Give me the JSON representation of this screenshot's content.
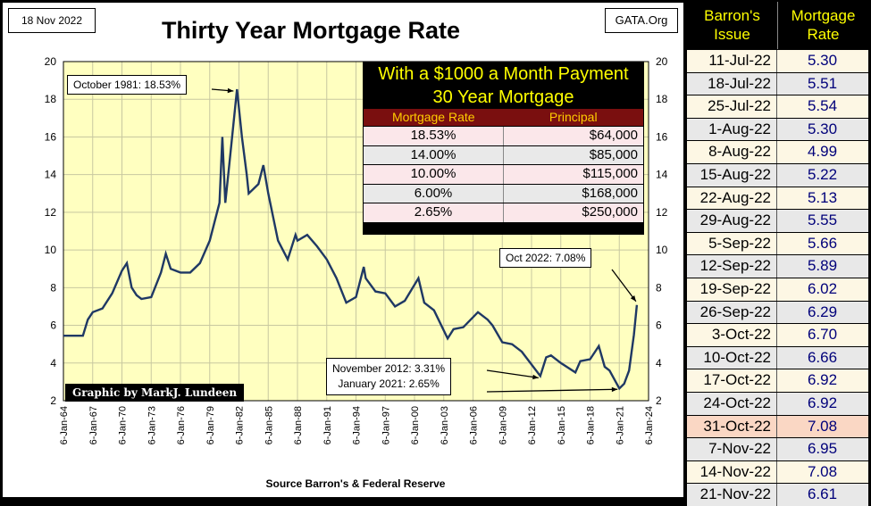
{
  "header": {
    "date": "18 Nov 2022",
    "site": "GATA.Org",
    "title": "Thirty Year Mortgage Rate"
  },
  "source": "Source Barron's & Federal Reserve",
  "credit": "Graphic by MarkJ. Lundeen",
  "callouts": {
    "peak": "October 1981:  18.53%",
    "latest": "Oct 2022:  7.08%",
    "lows_line1": "November 2012:  3.31%",
    "lows_line2": "January 2021:  2.65%"
  },
  "payment_box": {
    "title_line1": "With a $1000 a Month Payment",
    "title_line2": "30 Year Mortgage",
    "col_rate": "Mortgage Rate",
    "col_principal": "Principal",
    "rows": [
      {
        "rate": "18.53%",
        "principal": "$64,000"
      },
      {
        "rate": "14.00%",
        "principal": "$85,000"
      },
      {
        "rate": "10.00%",
        "principal": "$115,000"
      },
      {
        "rate": "6.00%",
        "principal": "$168,000"
      },
      {
        "rate": "2.65%",
        "principal": "$250,000"
      }
    ]
  },
  "issue_table": {
    "col1": [
      "Barron's",
      "Issue"
    ],
    "col2": [
      "Mortgage",
      "Rate"
    ],
    "rows": [
      {
        "issue": "11-Jul-22",
        "rate": "5.30"
      },
      {
        "issue": "18-Jul-22",
        "rate": "5.51"
      },
      {
        "issue": "25-Jul-22",
        "rate": "5.54"
      },
      {
        "issue": "1-Aug-22",
        "rate": "5.30"
      },
      {
        "issue": "8-Aug-22",
        "rate": "4.99"
      },
      {
        "issue": "15-Aug-22",
        "rate": "5.22"
      },
      {
        "issue": "22-Aug-22",
        "rate": "5.13"
      },
      {
        "issue": "29-Aug-22",
        "rate": "5.55"
      },
      {
        "issue": "5-Sep-22",
        "rate": "5.66"
      },
      {
        "issue": "12-Sep-22",
        "rate": "5.89"
      },
      {
        "issue": "19-Sep-22",
        "rate": "6.02"
      },
      {
        "issue": "26-Sep-22",
        "rate": "6.29"
      },
      {
        "issue": "3-Oct-22",
        "rate": "6.70"
      },
      {
        "issue": "10-Oct-22",
        "rate": "6.66"
      },
      {
        "issue": "17-Oct-22",
        "rate": "6.92"
      },
      {
        "issue": "24-Oct-22",
        "rate": "6.92"
      },
      {
        "issue": "31-Oct-22",
        "rate": "7.08",
        "highlight": true
      },
      {
        "issue": "7-Nov-22",
        "rate": "6.95"
      },
      {
        "issue": "14-Nov-22",
        "rate": "7.08"
      },
      {
        "issue": "21-Nov-22",
        "rate": "6.61"
      }
    ]
  },
  "colors": {
    "plot_bg": "#ffffc0",
    "line": "#1f3864",
    "grid": "#c8c8a0"
  },
  "chart_data": {
    "type": "line",
    "title": "Thirty Year Mortgage Rate",
    "xlabel": "",
    "ylabel": "",
    "ylim": [
      2,
      20
    ],
    "yticks": [
      2,
      4,
      6,
      8,
      10,
      12,
      14,
      16,
      18,
      20
    ],
    "x_tick_labels": [
      "6-Jan-64",
      "6-Jan-67",
      "6-Jan-70",
      "6-Jan-73",
      "6-Jan-76",
      "6-Jan-79",
      "6-Jan-82",
      "6-Jan-85",
      "6-Jan-88",
      "6-Jan-91",
      "6-Jan-94",
      "6-Jan-97",
      "6-Jan-00",
      "6-Jan-03",
      "6-Jan-06",
      "6-Jan-09",
      "6-Jan-12",
      "6-Jan-15",
      "6-Jan-18",
      "6-Jan-21",
      "6-Jan-24"
    ],
    "grid": true,
    "series": [
      {
        "points": [
          [
            1964.0,
            5.45
          ],
          [
            1966.0,
            5.45
          ],
          [
            1966.5,
            6.3
          ],
          [
            1967.0,
            6.7
          ],
          [
            1968.0,
            6.9
          ],
          [
            1969.0,
            7.7
          ],
          [
            1970.0,
            8.9
          ],
          [
            1970.5,
            9.3
          ],
          [
            1971.0,
            8.0
          ],
          [
            1971.5,
            7.6
          ],
          [
            1972.0,
            7.4
          ],
          [
            1973.0,
            7.5
          ],
          [
            1974.0,
            8.8
          ],
          [
            1974.5,
            9.8
          ],
          [
            1975.0,
            9.0
          ],
          [
            1976.0,
            8.8
          ],
          [
            1977.0,
            8.8
          ],
          [
            1978.0,
            9.3
          ],
          [
            1979.0,
            10.5
          ],
          [
            1980.0,
            12.5
          ],
          [
            1980.3,
            16.0
          ],
          [
            1980.6,
            12.5
          ],
          [
            1981.0,
            14.5
          ],
          [
            1981.8,
            18.53
          ],
          [
            1982.3,
            16.0
          ],
          [
            1982.8,
            14.0
          ],
          [
            1983.0,
            13.0
          ],
          [
            1984.0,
            13.5
          ],
          [
            1984.5,
            14.5
          ],
          [
            1985.0,
            13.0
          ],
          [
            1986.0,
            10.5
          ],
          [
            1987.0,
            9.5
          ],
          [
            1987.8,
            10.8
          ],
          [
            1988.0,
            10.5
          ],
          [
            1989.0,
            10.8
          ],
          [
            1990.0,
            10.2
          ],
          [
            1991.0,
            9.5
          ],
          [
            1992.0,
            8.5
          ],
          [
            1993.0,
            7.2
          ],
          [
            1994.0,
            7.5
          ],
          [
            1994.8,
            9.1
          ],
          [
            1995.0,
            8.5
          ],
          [
            1996.0,
            7.8
          ],
          [
            1997.0,
            7.7
          ],
          [
            1998.0,
            7.0
          ],
          [
            1999.0,
            7.3
          ],
          [
            2000.4,
            8.5
          ],
          [
            2001.0,
            7.2
          ],
          [
            2002.0,
            6.8
          ],
          [
            2003.4,
            5.3
          ],
          [
            2004.0,
            5.8
          ],
          [
            2005.0,
            5.9
          ],
          [
            2006.5,
            6.7
          ],
          [
            2007.5,
            6.3
          ],
          [
            2008.0,
            6.0
          ],
          [
            2009.0,
            5.1
          ],
          [
            2010.0,
            5.0
          ],
          [
            2011.0,
            4.6
          ],
          [
            2012.9,
            3.31
          ],
          [
            2013.5,
            4.3
          ],
          [
            2014.0,
            4.4
          ],
          [
            2015.0,
            4.0
          ],
          [
            2016.5,
            3.5
          ],
          [
            2017.0,
            4.1
          ],
          [
            2018.0,
            4.2
          ],
          [
            2018.9,
            4.9
          ],
          [
            2019.5,
            3.8
          ],
          [
            2020.0,
            3.6
          ],
          [
            2021.0,
            2.65
          ],
          [
            2021.5,
            2.9
          ],
          [
            2022.0,
            3.6
          ],
          [
            2022.5,
            5.5
          ],
          [
            2022.8,
            7.08
          ]
        ]
      }
    ]
  }
}
